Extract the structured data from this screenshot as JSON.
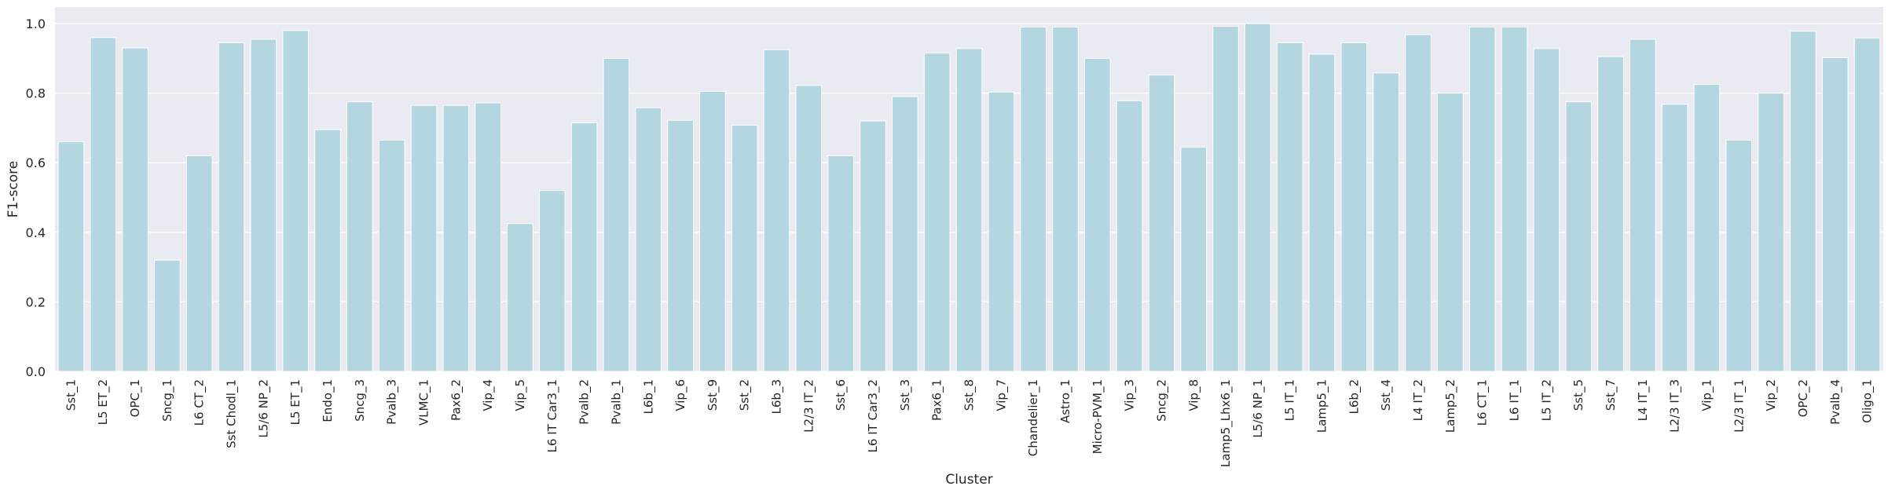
{
  "chart_data": {
    "type": "bar",
    "title": "",
    "xlabel": "Cluster",
    "ylabel": "F1-score",
    "ylim": [
      0,
      1.0
    ],
    "yticks": [
      0.0,
      0.2,
      0.4,
      0.6,
      0.8,
      1.0
    ],
    "ytick_labels": [
      "0.0",
      "0.2",
      "0.4",
      "0.6",
      "0.8",
      "1.0"
    ],
    "grid": true,
    "bar_color": "#b4d6e1",
    "background_color": "#eaeaf2",
    "grid_color": "#ffffff",
    "categories": [
      "Sst_1",
      "L5 ET_2",
      "OPC_1",
      "Sncg_1",
      "L6 CT_2",
      "Sst Chodl_1",
      "L5/6 NP_2",
      "L5 ET_1",
      "Endo_1",
      "Sncg_3",
      "Pvalb_3",
      "VLMC_1",
      "Pax6_2",
      "Vip_4",
      "Vip_5",
      "L6 IT Car3_1",
      "Pvalb_2",
      "Pvalb_1",
      "L6b_1",
      "Vip_6",
      "Sst_9",
      "Sst_2",
      "L6b_3",
      "L2/3 IT_2",
      "Sst_6",
      "L6 IT Car3_2",
      "Sst_3",
      "Pax6_1",
      "Sst_8",
      "Vip_7",
      "Chandelier_1",
      "Astro_1",
      "Micro-PVM_1",
      "Vip_3",
      "Sncg_2",
      "Vip_8",
      "Lamp5_Lhx6_1",
      "L5/6 NP_1",
      "L5 IT_1",
      "Lamp5_1",
      "L6b_2",
      "Sst_4",
      "L4 IT_2",
      "Lamp5_2",
      "L6 CT_1",
      "L6 IT_1",
      "L5 IT_2",
      "Sst_5",
      "Sst_7",
      "L4 IT_1",
      "L2/3 IT_3",
      "Vip_1",
      "L2/3 IT_1",
      "Vip_2",
      "OPC_2",
      "Pvalb_4",
      "Oligo_1"
    ],
    "values": [
      0.66,
      0.96,
      0.93,
      0.32,
      0.62,
      0.945,
      0.955,
      0.98,
      0.695,
      0.775,
      0.665,
      0.765,
      0.765,
      0.772,
      0.425,
      0.52,
      0.715,
      0.9,
      0.758,
      0.722,
      0.805,
      0.708,
      0.925,
      0.822,
      0.62,
      0.72,
      0.79,
      0.915,
      0.928,
      0.803,
      0.99,
      0.99,
      0.9,
      0.778,
      0.852,
      0.645,
      0.992,
      1.0,
      0.945,
      0.912,
      0.945,
      0.858,
      0.968,
      0.8,
      0.99,
      0.99,
      0.928,
      0.775,
      0.905,
      0.955,
      0.768,
      0.825,
      0.665,
      0.8,
      0.978,
      0.902,
      0.958
    ]
  }
}
